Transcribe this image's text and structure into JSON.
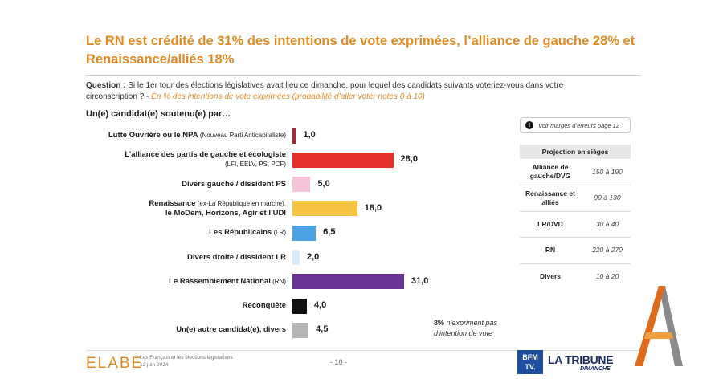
{
  "header": {
    "title": "Le RN est crédité de 31% des intentions de vote exprimées, l’alliance de gauche 28% et Renaissance/alliés 18%",
    "question_label": "Question :",
    "question_text": "Si le 1er tour des élections législatives avait lieu ce dimanche, pour lequel des candidats suivants voteriez-vous dans votre circonscription ?",
    "question_sep": " - ",
    "question_note": "En % des intentions de vote exprimées (probabilité d’aller voter notes 8 à 10)",
    "subtitle": "Un(e) candidat(e) soutenu(e) par…"
  },
  "chart_data": {
    "type": "bar",
    "orientation": "horizontal",
    "title": "",
    "xlabel": "",
    "ylabel": "",
    "categories": [
      "Lutte Ouvrière ou le NPA (Nouveau Parti Anticapitaliste)",
      "L’alliance des partis de gauche et écologiste (LFI, EELV, PS, PCF)",
      "Divers gauche / dissident PS",
      "Renaissance (ex-La République en marche), le MoDem, Horizons, Agir et l’UDI",
      "Les Républicains (LR)",
      "Divers droite / dissident LR",
      "Le Rassemblement National (RN)",
      "Reconquête",
      "Un(e) autre candidat(e), divers"
    ],
    "labels": [
      {
        "main": "Lutte Ouvrière ou le NPA",
        "sub": "(Nouveau Parti Anticapitaliste)",
        "line2": ""
      },
      {
        "main": "L’alliance des partis de gauche et écologiste",
        "sub": "",
        "line2": "(LFI, EELV, PS, PCF)"
      },
      {
        "main": "Divers gauche / dissident PS",
        "sub": "",
        "line2": ""
      },
      {
        "main": "Renaissance",
        "sub": "(ex-La République en marche),",
        "line2": "le MoDem, Horizons, Agir et l’UDI"
      },
      {
        "main": "Les Républicains",
        "sub": "(LR)",
        "line2": ""
      },
      {
        "main": "Divers droite / dissident LR",
        "sub": "",
        "line2": ""
      },
      {
        "main": "Le Rassemblement National",
        "sub": "(RN)",
        "line2": ""
      },
      {
        "main": "Reconquête",
        "sub": "",
        "line2": ""
      },
      {
        "main": "Un(e) autre candidat(e), divers",
        "sub": "",
        "line2": ""
      }
    ],
    "values": [
      1.0,
      28.0,
      5.0,
      18.0,
      6.5,
      2.0,
      31.0,
      4.0,
      4.5
    ],
    "value_labels": [
      "1,0",
      "28,0",
      "5,0",
      "18,0",
      "6,5",
      "2,0",
      "31,0",
      "4,0",
      "4,5"
    ],
    "colors": [
      "#a3263a",
      "#e3312a",
      "#f4c4d8",
      "#f5c542",
      "#4ba3e3",
      "#d8ecfb",
      "#6a3597",
      "#111111",
      "#b5b5b5"
    ],
    "xlim": [
      0,
      31
    ],
    "grid": false,
    "legend": "none"
  },
  "margin_note": {
    "icon": "info-icon",
    "text": "Voir marges d’erreurs page 12"
  },
  "projection": {
    "heading": "Projection en sièges",
    "rows": [
      {
        "party": "Alliance de gauche/DVG",
        "party_l1": "Alliance de",
        "party_l2": "gauche/DVG",
        "range": "150 à 190"
      },
      {
        "party": "Renaissance et alliés",
        "party_l1": "Renaissance et",
        "party_l2": "alliés",
        "range": "90 à 130"
      },
      {
        "party": "LR/DVD",
        "party_l1": "LR/DVD",
        "party_l2": "",
        "range": "30 à 40"
      },
      {
        "party": "RN",
        "party_l1": "RN",
        "party_l2": "",
        "range": "220 à 270"
      },
      {
        "party": "Divers",
        "party_l1": "Divers",
        "party_l2": "",
        "range": "10 à 20"
      }
    ]
  },
  "non_expressed": {
    "value": "8%",
    "text_l1": " n’expriment pas",
    "text_l2": "d’intention de vote"
  },
  "footer": {
    "brand": "ELABE",
    "line1": "Les Français et les élections législatives",
    "line2": "12 juin 2024",
    "page": "- 10 -",
    "media1_l1": "BFM",
    "media1_l2": "TV.",
    "media2": "LA TRIBUNE",
    "media2_sub": "DIMANCHE"
  },
  "colors": {
    "accent": "#e08a22",
    "text": "#222222"
  }
}
